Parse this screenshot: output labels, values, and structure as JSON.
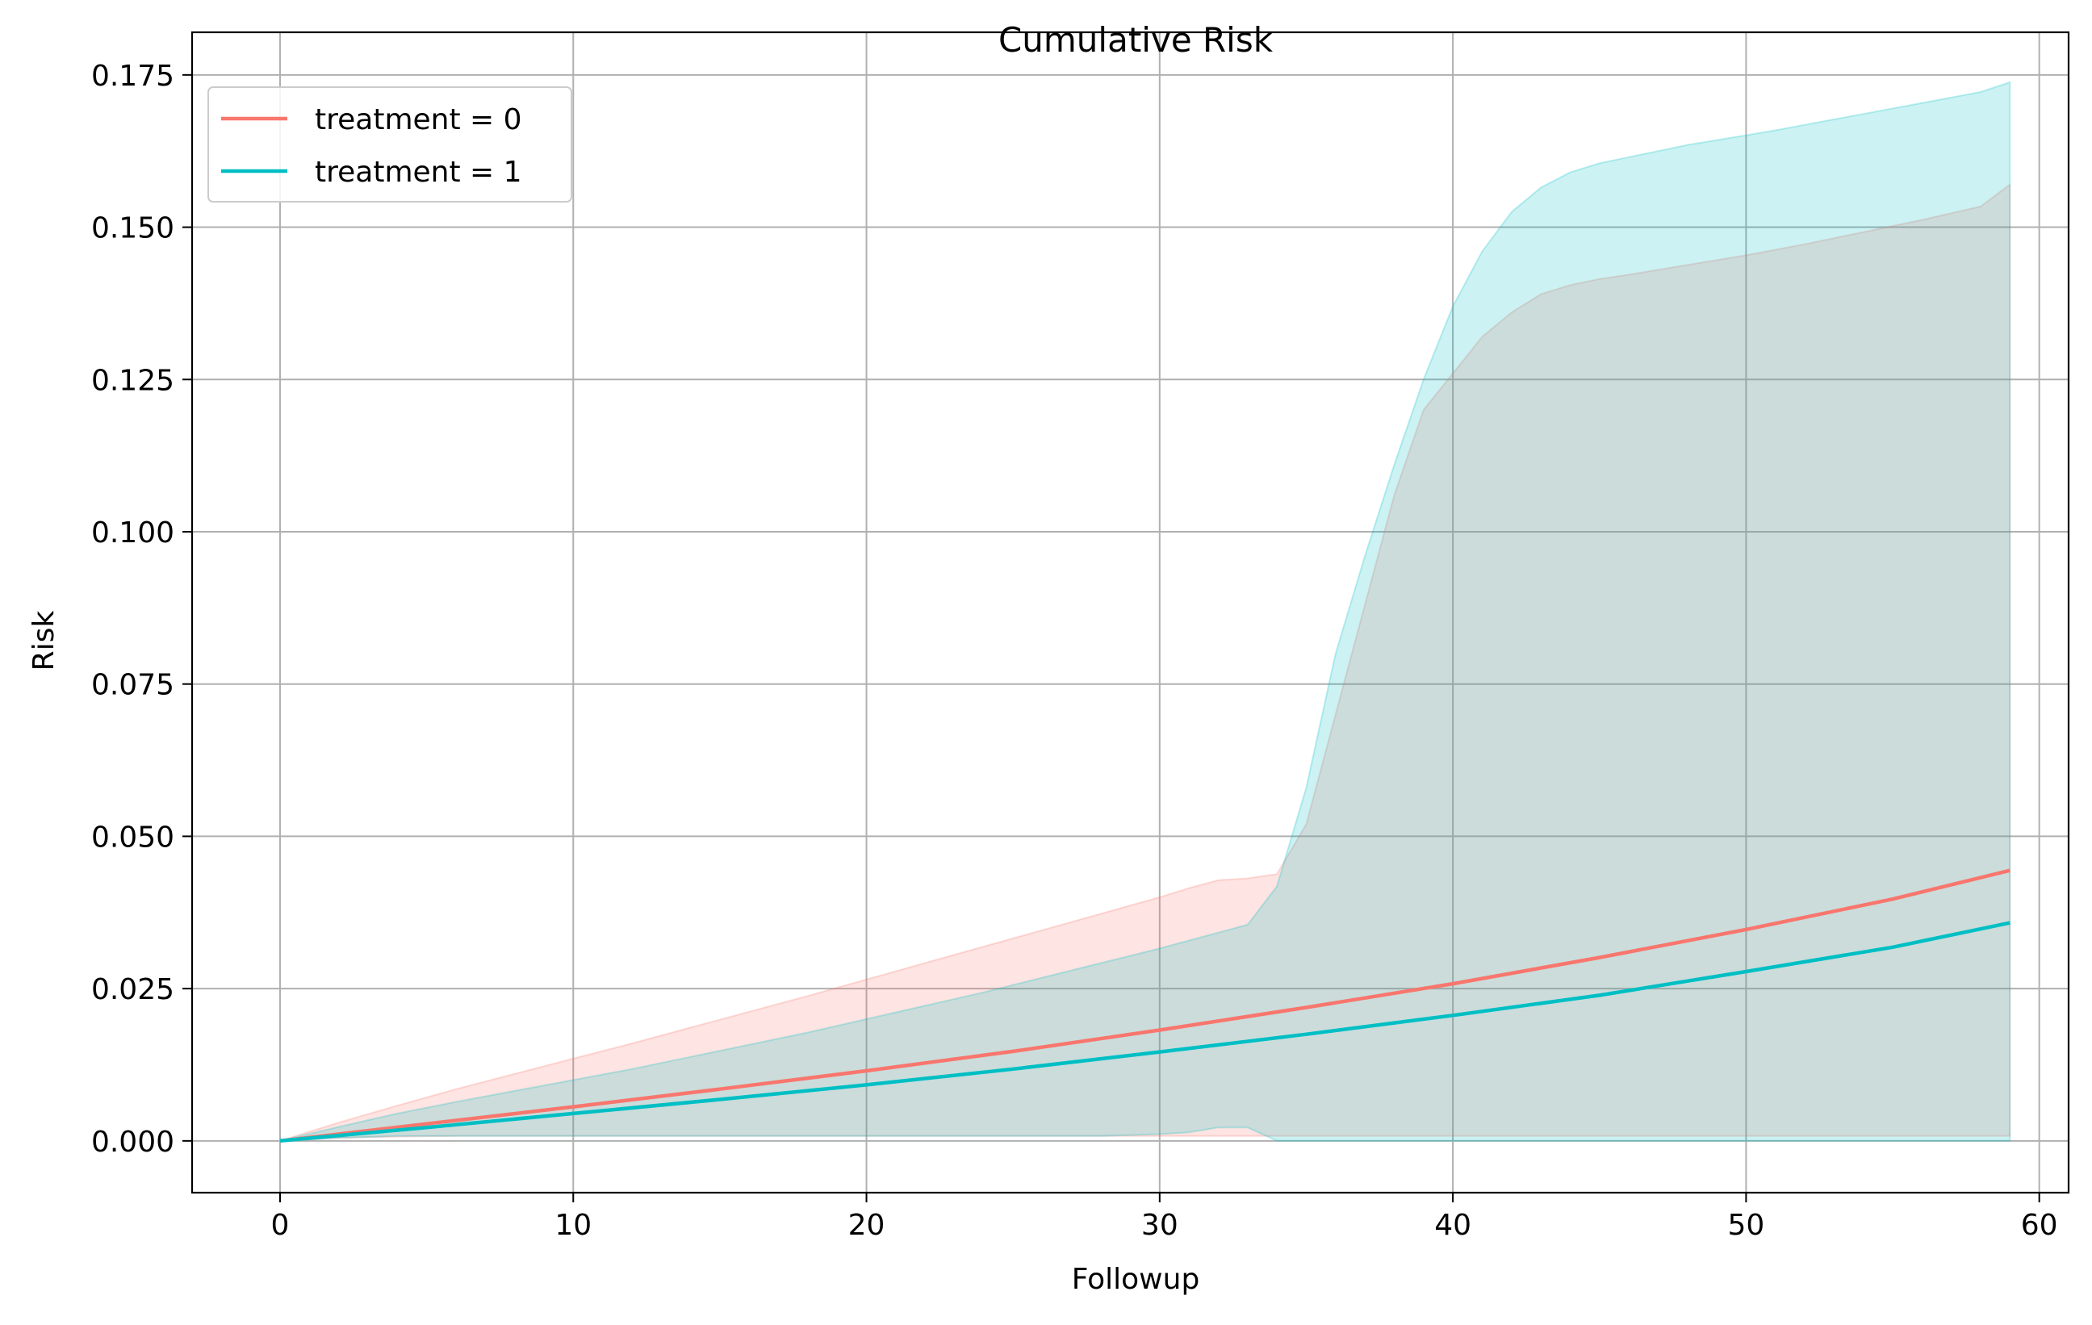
{
  "chart_data": {
    "type": "line",
    "title": "Cumulative Risk",
    "xlabel": "Followup",
    "ylabel": "Risk",
    "xlim": [
      -3,
      61
    ],
    "ylim": [
      -0.0085,
      0.182
    ],
    "xticks": [
      0,
      10,
      20,
      30,
      40,
      50,
      60
    ],
    "xtick_labels": [
      "0",
      "10",
      "20",
      "30",
      "40",
      "50",
      "60"
    ],
    "yticks": [
      0.0,
      0.025,
      0.05,
      0.075,
      0.1,
      0.125,
      0.15,
      0.175
    ],
    "ytick_labels": [
      "0.000",
      "0.025",
      "0.050",
      "0.075",
      "0.100",
      "0.125",
      "0.150",
      "0.175"
    ],
    "grid": true,
    "legend_position": "top-left",
    "series": [
      {
        "name": "treatment = 0",
        "color": "#F8766D",
        "x": [
          0,
          5,
          10,
          15,
          20,
          25,
          30,
          35,
          40,
          45,
          50,
          55,
          59
        ],
        "y": [
          0.0,
          0.0028,
          0.0056,
          0.0085,
          0.0115,
          0.0147,
          0.0182,
          0.0219,
          0.0258,
          0.0301,
          0.0347,
          0.0397,
          0.0444
        ],
        "ci_x": [
          0,
          2,
          4,
          6,
          8,
          10,
          12,
          14,
          16,
          18,
          20,
          22,
          24,
          26,
          28,
          30,
          31,
          32,
          33,
          34,
          35,
          36,
          37,
          38,
          39,
          40,
          41,
          42,
          43,
          44,
          45,
          46,
          47,
          48,
          49,
          50,
          51,
          52,
          53,
          54,
          55,
          56,
          57,
          58,
          59
        ],
        "ci_lower": [
          0.0,
          0.0005,
          0.0007,
          0.0008,
          0.0008,
          0.0008,
          0.0008,
          0.0008,
          0.0008,
          0.0008,
          0.0008,
          0.0008,
          0.0008,
          0.0008,
          0.0008,
          0.0008,
          0.0008,
          0.0008,
          0.0008,
          0.0008,
          0.0008,
          0.0008,
          0.0008,
          0.0008,
          0.0008,
          0.0008,
          0.0008,
          0.0008,
          0.0008,
          0.0008,
          0.0008,
          0.0008,
          0.0008,
          0.0008,
          0.0008,
          0.0008,
          0.0008,
          0.0008,
          0.0008,
          0.0008,
          0.0008,
          0.0008,
          0.0008,
          0.0008,
          0.0008
        ],
        "ci_upper": [
          0.0,
          0.003,
          0.0058,
          0.0085,
          0.011,
          0.0135,
          0.016,
          0.0186,
          0.0212,
          0.0238,
          0.0265,
          0.0292,
          0.0319,
          0.0346,
          0.0373,
          0.04,
          0.0415,
          0.0428,
          0.0431,
          0.0438,
          0.052,
          0.07,
          0.088,
          0.106,
          0.12,
          0.126,
          0.132,
          0.136,
          0.139,
          0.1405,
          0.1415,
          0.1422,
          0.143,
          0.1438,
          0.1446,
          0.1454,
          0.1463,
          0.1472,
          0.1482,
          0.1492,
          0.1502,
          0.1512,
          0.1523,
          0.1534,
          0.157
        ]
      },
      {
        "name": "treatment = 1",
        "color": "#00BFC4",
        "x": [
          0,
          5,
          10,
          15,
          20,
          25,
          30,
          35,
          40,
          45,
          50,
          55,
          59
        ],
        "y": [
          0.0,
          0.0022,
          0.0045,
          0.0068,
          0.0092,
          0.0118,
          0.0146,
          0.0175,
          0.0206,
          0.0239,
          0.0278,
          0.0318,
          0.0358
        ],
        "ci_x": [
          0,
          2,
          4,
          6,
          8,
          10,
          12,
          14,
          16,
          18,
          20,
          22,
          24,
          26,
          28,
          30,
          31,
          32,
          33,
          34,
          35,
          36,
          37,
          38,
          39,
          40,
          41,
          42,
          43,
          44,
          45,
          46,
          47,
          48,
          49,
          50,
          51,
          52,
          53,
          54,
          55,
          56,
          57,
          58,
          59
        ],
        "ci_lower": [
          0.0,
          0.0005,
          0.0008,
          0.0008,
          0.0008,
          0.0008,
          0.0008,
          0.0008,
          0.0008,
          0.0008,
          0.0008,
          0.0008,
          0.0008,
          0.0008,
          0.0008,
          0.0011,
          0.0014,
          0.0022,
          0.0022,
          0.0,
          0.0,
          0.0,
          0.0,
          0.0,
          0.0,
          0.0,
          0.0,
          0.0,
          0.0,
          0.0,
          0.0,
          0.0,
          0.0,
          0.0,
          0.0,
          0.0,
          0.0,
          0.0,
          0.0,
          0.0,
          0.0,
          0.0,
          0.0,
          0.0,
          0.0
        ],
        "ci_upper": [
          0.0,
          0.0023,
          0.0045,
          0.0064,
          0.0082,
          0.01,
          0.0118,
          0.0138,
          0.0158,
          0.0178,
          0.02,
          0.0222,
          0.0244,
          0.0268,
          0.0292,
          0.0316,
          0.0329,
          0.0342,
          0.0355,
          0.0418,
          0.058,
          0.08,
          0.096,
          0.111,
          0.125,
          0.137,
          0.146,
          0.1525,
          0.1565,
          0.159,
          0.1605,
          0.1615,
          0.1625,
          0.1635,
          0.1643,
          0.1651,
          0.1659,
          0.1668,
          0.1677,
          0.1686,
          0.1695,
          0.1704,
          0.1713,
          0.1722,
          0.1738
        ]
      }
    ]
  }
}
